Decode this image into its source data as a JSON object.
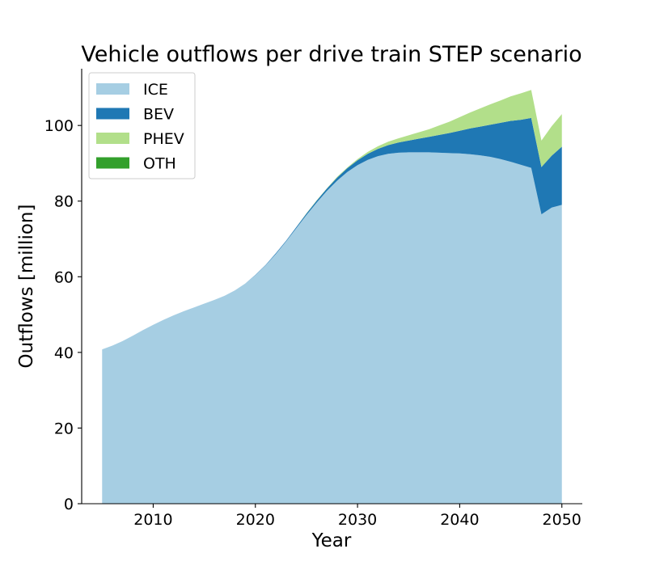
{
  "chart_data": {
    "type": "area",
    "title": "Vehicle outflows per drive train STEP scenario",
    "xlabel": "Year",
    "ylabel": "Outflows [million]",
    "xlim": [
      2003,
      2052
    ],
    "ylim": [
      0,
      115
    ],
    "x_ticks": [
      2010,
      2020,
      2030,
      2040,
      2050
    ],
    "y_ticks": [
      0,
      20,
      40,
      60,
      80,
      100
    ],
    "grid": false,
    "legend_position": "top-left",
    "stacked": true,
    "x": [
      2005,
      2006,
      2007,
      2008,
      2009,
      2010,
      2011,
      2012,
      2013,
      2014,
      2015,
      2016,
      2017,
      2018,
      2019,
      2020,
      2021,
      2022,
      2023,
      2024,
      2025,
      2026,
      2027,
      2028,
      2029,
      2030,
      2031,
      2032,
      2033,
      2034,
      2035,
      2036,
      2037,
      2038,
      2039,
      2040,
      2041,
      2042,
      2043,
      2044,
      2045,
      2046,
      2047,
      2048,
      2049,
      2050
    ],
    "series": [
      {
        "name": "ICE",
        "color": "#a6cee3",
        "values": [
          40.8,
          41.8,
          43.0,
          44.4,
          45.9,
          47.3,
          48.6,
          49.8,
          50.9,
          51.9,
          52.9,
          53.9,
          55.0,
          56.4,
          58.2,
          60.4,
          63.0,
          66.0,
          69.3,
          72.8,
          76.3,
          79.6,
          82.7,
          85.4,
          87.7,
          89.5,
          90.9,
          91.9,
          92.5,
          92.8,
          92.9,
          92.9,
          92.9,
          92.8,
          92.7,
          92.6,
          92.4,
          92.1,
          91.7,
          91.1,
          90.4,
          89.6,
          88.8,
          76.5,
          78.3,
          79.0
        ]
      },
      {
        "name": "BEV",
        "color": "#1f78b4",
        "values": [
          0,
          0,
          0,
          0,
          0,
          0,
          0,
          0,
          0,
          0,
          0,
          0,
          0,
          0,
          0,
          0.1,
          0.1,
          0.2,
          0.2,
          0.3,
          0.4,
          0.5,
          0.6,
          0.8,
          1.0,
          1.3,
          1.6,
          1.9,
          2.3,
          2.7,
          3.1,
          3.6,
          4.1,
          4.7,
          5.3,
          6.0,
          6.8,
          7.6,
          8.5,
          9.6,
          10.8,
          11.9,
          13.2,
          12.5,
          13.7,
          15.4
        ]
      },
      {
        "name": "PHEV",
        "color": "#b2df8a",
        "values": [
          0,
          0,
          0,
          0,
          0,
          0,
          0,
          0,
          0,
          0,
          0,
          0,
          0,
          0,
          0,
          0,
          0,
          0,
          0,
          0,
          0.1,
          0.1,
          0.1,
          0.2,
          0.2,
          0.3,
          0.5,
          0.7,
          0.9,
          1.1,
          1.4,
          1.7,
          2.0,
          2.5,
          3.0,
          3.6,
          4.2,
          4.8,
          5.4,
          5.9,
          6.5,
          7.0,
          7.4,
          7.0,
          7.8,
          8.6
        ]
      },
      {
        "name": "OTH",
        "color": "#33a02c",
        "values": [
          0,
          0,
          0,
          0,
          0,
          0,
          0,
          0,
          0,
          0,
          0,
          0,
          0,
          0,
          0,
          0,
          0,
          0,
          0,
          0,
          0,
          0,
          0,
          0,
          0,
          0,
          0,
          0,
          0,
          0,
          0,
          0,
          0,
          0,
          0,
          0,
          0,
          0,
          0,
          0,
          0,
          0,
          0,
          0,
          0,
          0
        ]
      }
    ]
  }
}
